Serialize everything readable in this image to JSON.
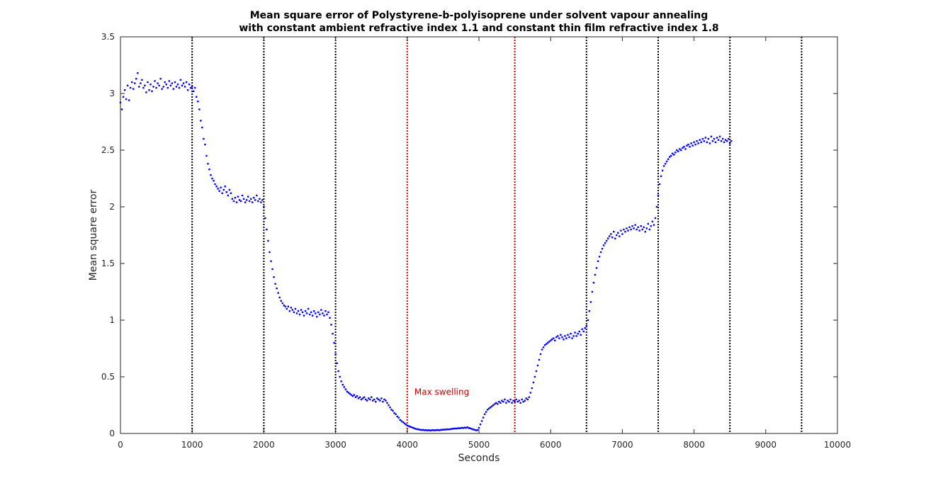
{
  "chart_data": {
    "type": "scatter",
    "title": [
      "Mean square error of Polystyrene-b-polyisoprene under solvent vapour annealing",
      "with constant ambient refractive index 1.1 and constant thin film refractive index 1.8"
    ],
    "xlabel": "Seconds",
    "ylabel": "Mean square error",
    "xlim": [
      0,
      10000
    ],
    "ylim": [
      0,
      3.5
    ],
    "x_ticks": [
      "0",
      "1000",
      "2000",
      "3000",
      "4000",
      "5000",
      "6000",
      "7000",
      "8000",
      "9000",
      "10000"
    ],
    "y_ticks": [
      "0",
      "0.5",
      "1",
      "1.5",
      "2",
      "2.5",
      "3",
      "3.5"
    ],
    "grid": false,
    "marker_color": "#0000ff",
    "series": [
      {
        "x_start": 0,
        "x_step": 20,
        "y": [
          2.92,
          2.86,
          2.97,
          3.03,
          2.95,
          3.07,
          2.94,
          3.05,
          3.1,
          3.04,
          3.09,
          3.13,
          3.18,
          3.06,
          3.09,
          3.12,
          3.05,
          3.07,
          3.01,
          3.1,
          3.03,
          3.08,
          3.02,
          3.06,
          3.11,
          3.05,
          3.09,
          3.07,
          3.13,
          3.04,
          3.06,
          3.1,
          3.08,
          3.05,
          3.11,
          3.07,
          3.09,
          3.04,
          3.1,
          3.06,
          3.08,
          3.05,
          3.12,
          3.07,
          3.09,
          3.06,
          3.1,
          3.03,
          3.08,
          3.05,
          3.06,
          3.02,
          3.05,
          2.97,
          2.93,
          2.86,
          2.76,
          2.7,
          2.6,
          2.55,
          2.45,
          2.38,
          2.33,
          2.28,
          2.25,
          2.23,
          2.2,
          2.18,
          2.16,
          2.14,
          2.17,
          2.12,
          2.15,
          2.18,
          2.13,
          2.1,
          2.15,
          2.12,
          2.07,
          2.05,
          2.08,
          2.04,
          2.09,
          2.06,
          2.05,
          2.1,
          2.07,
          2.04,
          2.06,
          2.09,
          2.05,
          2.07,
          2.04,
          2.08,
          2.06,
          2.1,
          2.05,
          2.07,
          2.04,
          2.06,
          2.0,
          1.9,
          1.8,
          1.7,
          1.6,
          1.52,
          1.45,
          1.38,
          1.32,
          1.28,
          1.24,
          1.2,
          1.17,
          1.15,
          1.13,
          1.12,
          1.1,
          1.12,
          1.08,
          1.11,
          1.09,
          1.07,
          1.1,
          1.06,
          1.08,
          1.05,
          1.09,
          1.07,
          1.04,
          1.08,
          1.06,
          1.1,
          1.05,
          1.07,
          1.04,
          1.08,
          1.06,
          1.03,
          1.07,
          1.05,
          1.09,
          1.06,
          1.04,
          1.08,
          1.05,
          1.07,
          1.02,
          0.96,
          0.88,
          0.8,
          0.7,
          0.62,
          0.55,
          0.5,
          0.46,
          0.43,
          0.41,
          0.39,
          0.37,
          0.36,
          0.35,
          0.34,
          0.33,
          0.34,
          0.32,
          0.33,
          0.31,
          0.32,
          0.3,
          0.31,
          0.32,
          0.3,
          0.29,
          0.31,
          0.3,
          0.32,
          0.29,
          0.3,
          0.28,
          0.31,
          0.3,
          0.29,
          0.31,
          0.28,
          0.3,
          0.29,
          0.27,
          0.25,
          0.23,
          0.21,
          0.2,
          0.18,
          0.17,
          0.15,
          0.14,
          0.12,
          0.11,
          0.1,
          0.09,
          0.08,
          0.07,
          0.065,
          0.06,
          0.055,
          0.05,
          0.045,
          0.04,
          0.038,
          0.035,
          0.033,
          0.03,
          0.032,
          0.028,
          0.03,
          0.027,
          0.029,
          0.026,
          0.028,
          0.03,
          0.027,
          0.029,
          0.031,
          0.028,
          0.03,
          0.033,
          0.032,
          0.035,
          0.034,
          0.037,
          0.036,
          0.038,
          0.04,
          0.042,
          0.044,
          0.043,
          0.045,
          0.047,
          0.046,
          0.05,
          0.048,
          0.052,
          0.05,
          0.054,
          0.048,
          0.045,
          0.04,
          0.035,
          0.032,
          0.028,
          0.03,
          0.05,
          0.08,
          0.11,
          0.14,
          0.17,
          0.19,
          0.21,
          0.22,
          0.23,
          0.24,
          0.25,
          0.26,
          0.27,
          0.26,
          0.28,
          0.27,
          0.29,
          0.28,
          0.3,
          0.27,
          0.29,
          0.28,
          0.3,
          0.27,
          0.29,
          0.28,
          0.3,
          0.28,
          0.29,
          0.27,
          0.3,
          0.28,
          0.29,
          0.31,
          0.3,
          0.32,
          0.36,
          0.4,
          0.45,
          0.5,
          0.55,
          0.6,
          0.65,
          0.7,
          0.74,
          0.76,
          0.78,
          0.79,
          0.8,
          0.81,
          0.82,
          0.83,
          0.84,
          0.82,
          0.85,
          0.86,
          0.84,
          0.87,
          0.85,
          0.83,
          0.86,
          0.84,
          0.87,
          0.85,
          0.88,
          0.84,
          0.86,
          0.89,
          0.86,
          0.88,
          0.9,
          0.87,
          0.92,
          0.9,
          0.93,
          0.95,
          1.0,
          1.08,
          1.16,
          1.25,
          1.33,
          1.4,
          1.46,
          1.52,
          1.56,
          1.6,
          1.63,
          1.66,
          1.68,
          1.7,
          1.72,
          1.74,
          1.76,
          1.73,
          1.78,
          1.72,
          1.75,
          1.77,
          1.74,
          1.79,
          1.76,
          1.8,
          1.78,
          1.81,
          1.79,
          1.82,
          1.8,
          1.83,
          1.81,
          1.84,
          1.8,
          1.82,
          1.79,
          1.83,
          1.8,
          1.82,
          1.78,
          1.81,
          1.85,
          1.8,
          1.83,
          1.87,
          1.84,
          1.9,
          2.0,
          2.1,
          2.2,
          2.27,
          2.32,
          2.36,
          2.38,
          2.4,
          2.42,
          2.44,
          2.45,
          2.47,
          2.46,
          2.48,
          2.5,
          2.49,
          2.51,
          2.5,
          2.52,
          2.53,
          2.51,
          2.54,
          2.55,
          2.53,
          2.56,
          2.54,
          2.57,
          2.55,
          2.58,
          2.56,
          2.59,
          2.57,
          2.6,
          2.58,
          2.61,
          2.57,
          2.6,
          2.56,
          2.62,
          2.58,
          2.6,
          2.57,
          2.61,
          2.59,
          2.62,
          2.58,
          2.6,
          2.57,
          2.59,
          2.58,
          2.6,
          2.56,
          2.58
        ]
      }
    ],
    "vertical_lines": [
      {
        "x": 1000,
        "color": "#000000"
      },
      {
        "x": 2000,
        "color": "#000000"
      },
      {
        "x": 3000,
        "color": "#000000"
      },
      {
        "x": 4000,
        "color": "#cc0000"
      },
      {
        "x": 5500,
        "color": "#cc0000"
      },
      {
        "x": 6500,
        "color": "#000000"
      },
      {
        "x": 7500,
        "color": "#000000"
      },
      {
        "x": 8500,
        "color": "#000000"
      },
      {
        "x": 9500,
        "color": "#000000"
      }
    ],
    "annotations": [
      {
        "text": "Max swelling",
        "x": 4100,
        "y": 0.34,
        "color": "#cc0000"
      }
    ]
  }
}
